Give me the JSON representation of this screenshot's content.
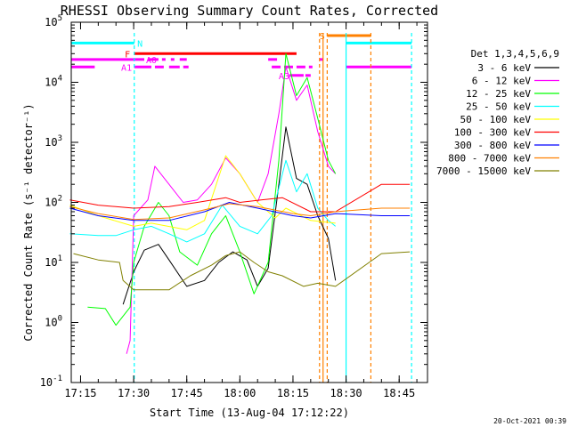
{
  "chart_data": {
    "type": "line",
    "title": "RHESSI Observing Summary Count Rates, Corrected",
    "ylabel": "Corrected Count Rate (s⁻¹ detector⁻¹)",
    "xlabel": "Start Time (13-Aug-04 17:12:22)",
    "y_scale": "log",
    "ylim": [
      0.1,
      100000
    ],
    "xlim": [
      "17:12:22",
      "18:53:00"
    ],
    "x_ticks": [
      "17:15",
      "17:30",
      "17:45",
      "18:00",
      "18:15",
      "18:30",
      "18:45"
    ],
    "y_ticks": [
      {
        "base": "10",
        "exp": "-1",
        "value": 0.1
      },
      {
        "base": "10",
        "exp": "0",
        "value": 1
      },
      {
        "base": "10",
        "exp": "1",
        "value": 10
      },
      {
        "base": "10",
        "exp": "2",
        "value": 100
      },
      {
        "base": "10",
        "exp": "3",
        "value": 1000
      },
      {
        "base": "10",
        "exp": "4",
        "value": 10000
      },
      {
        "base": "10",
        "exp": "5",
        "value": 100000
      }
    ],
    "grid": false,
    "legend_title": "Det 1,3,4,5,6,9",
    "legend_position": "right",
    "footer_date": "20-Oct-2021 00:39",
    "series": [
      {
        "name": "3 - 6 keV",
        "color": "#000000",
        "points": [
          [
            "17:27",
            2
          ],
          [
            "17:30",
            7
          ],
          [
            "17:33",
            16
          ],
          [
            "17:37",
            20
          ],
          [
            "17:40",
            11
          ],
          [
            "17:45",
            4
          ],
          [
            "17:50",
            5
          ],
          [
            "17:54",
            10
          ],
          [
            "17:58",
            15
          ],
          [
            "18:02",
            11
          ],
          [
            "18:05",
            4
          ],
          [
            "18:08",
            8
          ],
          [
            "18:11",
            200
          ],
          [
            "18:13",
            1800
          ],
          [
            "18:16",
            250
          ],
          [
            "18:19",
            200
          ],
          [
            "18:22",
            60
          ],
          [
            "18:25",
            25
          ],
          [
            "18:27",
            5
          ]
        ]
      },
      {
        "name": "6 - 12 keV",
        "color": "#ff00ff",
        "points": [
          [
            "17:28",
            0.3
          ],
          [
            "17:29",
            0.5
          ],
          [
            "17:30",
            60
          ],
          [
            "17:34",
            110
          ],
          [
            "17:36",
            400
          ],
          [
            "17:40",
            200
          ],
          [
            "17:44",
            100
          ],
          [
            "17:48",
            110
          ],
          [
            "17:52",
            200
          ],
          [
            "17:56",
            550
          ],
          [
            "18:00",
            300
          ],
          [
            "18:05",
            100
          ],
          [
            "18:08",
            300
          ],
          [
            "18:11",
            3000
          ],
          [
            "18:13",
            18000
          ],
          [
            "18:16",
            5000
          ],
          [
            "18:19",
            9000
          ],
          [
            "18:22",
            1500
          ],
          [
            "18:25",
            400
          ],
          [
            "18:27",
            300
          ]
        ]
      },
      {
        "name": "12 - 25 keV",
        "color": "#00ff00",
        "points": [
          [
            "17:17",
            1.8
          ],
          [
            "17:22",
            1.7
          ],
          [
            "17:25",
            0.9
          ],
          [
            "17:29",
            1.8
          ],
          [
            "17:30",
            10
          ],
          [
            "17:33",
            40
          ],
          [
            "17:37",
            100
          ],
          [
            "17:40",
            60
          ],
          [
            "17:43",
            15
          ],
          [
            "17:48",
            9
          ],
          [
            "17:52",
            30
          ],
          [
            "17:56",
            60
          ],
          [
            "18:00",
            15
          ],
          [
            "18:04",
            3
          ],
          [
            "18:08",
            10
          ],
          [
            "18:11",
            500
          ],
          [
            "18:13",
            30000
          ],
          [
            "18:16",
            6000
          ],
          [
            "18:19",
            12000
          ],
          [
            "18:22",
            2500
          ],
          [
            "18:25",
            500
          ],
          [
            "18:27",
            300
          ]
        ]
      },
      {
        "name": "25 - 50 keV",
        "color": "#00ffff",
        "points": [
          [
            "17:12",
            30
          ],
          [
            "17:20",
            28
          ],
          [
            "17:25",
            28
          ],
          [
            "17:30",
            35
          ],
          [
            "17:35",
            40
          ],
          [
            "17:40",
            30
          ],
          [
            "17:45",
            22
          ],
          [
            "17:50",
            30
          ],
          [
            "17:55",
            90
          ],
          [
            "18:00",
            40
          ],
          [
            "18:05",
            30
          ],
          [
            "18:09",
            60
          ],
          [
            "18:13",
            500
          ],
          [
            "18:16",
            150
          ],
          [
            "18:19",
            300
          ],
          [
            "18:22",
            80
          ],
          [
            "18:25",
            50
          ],
          [
            "18:27",
            40
          ]
        ]
      },
      {
        "name": "50 - 100 keV",
        "color": "#ffff00",
        "points": [
          [
            "17:12",
            90
          ],
          [
            "17:20",
            60
          ],
          [
            "17:30",
            40
          ],
          [
            "17:35",
            45
          ],
          [
            "17:45",
            35
          ],
          [
            "17:50",
            50
          ],
          [
            "17:56",
            600
          ],
          [
            "18:00",
            300
          ],
          [
            "18:05",
            100
          ],
          [
            "18:10",
            55
          ],
          [
            "18:13",
            80
          ],
          [
            "18:20",
            50
          ],
          [
            "18:27",
            45
          ]
        ]
      },
      {
        "name": "100 - 300 keV",
        "color": "#ff0000",
        "points": [
          [
            "17:12",
            110
          ],
          [
            "17:20",
            90
          ],
          [
            "17:30",
            80
          ],
          [
            "17:40",
            85
          ],
          [
            "17:48",
            100
          ],
          [
            "17:56",
            120
          ],
          [
            "18:00",
            100
          ],
          [
            "18:06",
            110
          ],
          [
            "18:12",
            120
          ],
          [
            "18:20",
            70
          ],
          [
            "18:27",
            70
          ],
          [
            "18:40",
            200
          ],
          [
            "18:48",
            200
          ]
        ]
      },
      {
        "name": "300 - 800 keV",
        "color": "#0000ff",
        "points": [
          [
            "17:12",
            80
          ],
          [
            "17:20",
            60
          ],
          [
            "17:30",
            50
          ],
          [
            "17:40",
            50
          ],
          [
            "17:50",
            70
          ],
          [
            "17:57",
            100
          ],
          [
            "18:05",
            80
          ],
          [
            "18:15",
            60
          ],
          [
            "18:20",
            55
          ],
          [
            "18:27",
            65
          ],
          [
            "18:40",
            60
          ],
          [
            "18:48",
            60
          ]
        ]
      },
      {
        "name": "800 - 7000 keV",
        "color": "#ff8000",
        "points": [
          [
            "17:12",
            85
          ],
          [
            "17:20",
            65
          ],
          [
            "17:30",
            52
          ],
          [
            "17:40",
            55
          ],
          [
            "17:50",
            75
          ],
          [
            "17:57",
            95
          ],
          [
            "18:05",
            85
          ],
          [
            "18:15",
            65
          ],
          [
            "18:20",
            60
          ],
          [
            "18:27",
            70
          ],
          [
            "18:40",
            80
          ],
          [
            "18:48",
            80
          ]
        ]
      },
      {
        "name": "7000 - 15000 keV",
        "color": "#808000",
        "points": [
          [
            "17:13",
            14
          ],
          [
            "17:20",
            11
          ],
          [
            "17:26",
            10
          ],
          [
            "17:27",
            5
          ],
          [
            "17:30",
            3.5
          ],
          [
            "17:40",
            3.5
          ],
          [
            "17:46",
            6
          ],
          [
            "17:52",
            9
          ],
          [
            "17:56",
            13
          ],
          [
            "18:00",
            15
          ],
          [
            "18:04",
            10
          ],
          [
            "18:08",
            7
          ],
          [
            "18:12",
            6
          ],
          [
            "18:18",
            4
          ],
          [
            "18:22",
            4.5
          ],
          [
            "18:27",
            4
          ],
          [
            "18:40",
            14
          ],
          [
            "18:48",
            15
          ]
        ]
      }
    ],
    "flag_labels": [
      {
        "text": "N",
        "color": "#00ffff"
      },
      {
        "text": "F",
        "color": "#ff0000"
      },
      {
        "text": "A0",
        "color": "#ff00ff"
      },
      {
        "text": "A1",
        "color": "#ff00ff"
      },
      {
        "text": "A3",
        "color": "#ff00ff"
      },
      {
        "text": "S",
        "color": "#ff8000"
      }
    ]
  }
}
